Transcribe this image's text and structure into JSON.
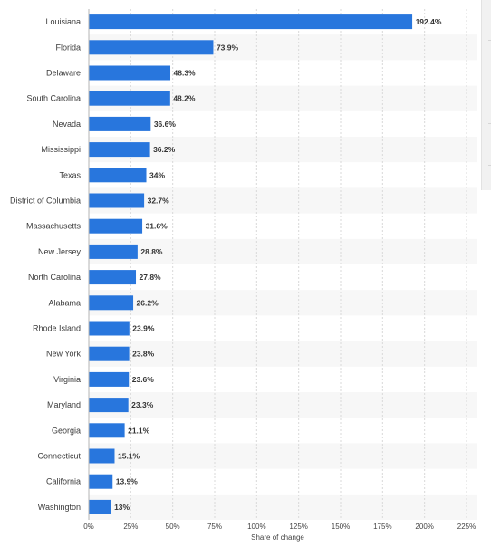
{
  "chart_data": {
    "type": "bar",
    "orientation": "horizontal",
    "categories": [
      "Louisiana",
      "Florida",
      "Delaware",
      "South Carolina",
      "Nevada",
      "Mississippi",
      "Texas",
      "District of Columbia",
      "Massachusetts",
      "New Jersey",
      "North Carolina",
      "Alabama",
      "Rhode Island",
      "New York",
      "Virginia",
      "Maryland",
      "Georgia",
      "Connecticut",
      "California",
      "Washington"
    ],
    "values": [
      192.4,
      73.9,
      48.3,
      48.2,
      36.6,
      36.2,
      34,
      32.7,
      31.6,
      28.8,
      27.8,
      26.2,
      23.9,
      23.8,
      23.6,
      23.3,
      21.1,
      15.1,
      13.9,
      13
    ],
    "value_labels": [
      "192.4%",
      "73.9%",
      "48.3%",
      "48.2%",
      "36.6%",
      "36.2%",
      "34%",
      "32.7%",
      "31.6%",
      "28.8%",
      "27.8%",
      "26.2%",
      "23.9%",
      "23.8%",
      "23.6%",
      "23.3%",
      "21.1%",
      "15.1%",
      "13.9%",
      "13%"
    ],
    "x_ticks": [
      0,
      25,
      50,
      75,
      100,
      125,
      150,
      175,
      200,
      225
    ],
    "x_tick_labels": [
      "0%",
      "25%",
      "50%",
      "75%",
      "100%",
      "125%",
      "150%",
      "175%",
      "200%",
      "225%"
    ],
    "xlim": [
      0,
      225
    ],
    "xlabel": "Share of change",
    "ylabel": "",
    "title": "",
    "grid": true,
    "bar_color": "#2876dd",
    "alt_row_color": "#f7f7f7"
  }
}
